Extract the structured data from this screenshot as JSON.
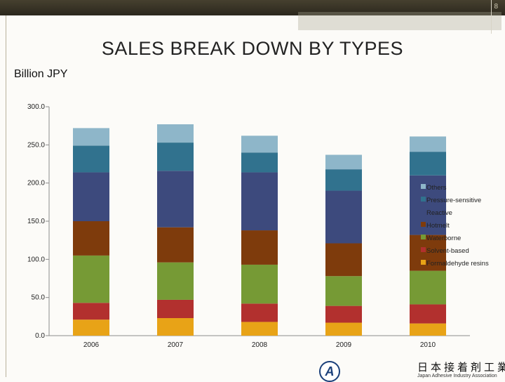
{
  "slide_number": "8",
  "title": "SALES BREAK DOWN BY TYPES",
  "unit_label": "Billion  JPY",
  "footer": {
    "logo_letter": "A",
    "japanese_name": "日本接着剤工業会",
    "english_name": "Japan Adhesive Industry Association"
  },
  "chart_data": {
    "type": "bar",
    "stacked": true,
    "title": "SALES BREAK DOWN BY TYPES",
    "ylabel": "Billion JPY",
    "xlabel": "",
    "ylim": [
      0,
      300
    ],
    "yticks": [
      "0.0",
      "50.0",
      "100.0",
      "150.0",
      "200.0",
      "250.0",
      "300.0"
    ],
    "grid": false,
    "legend_position": "right",
    "categories": [
      "2006",
      "2007",
      "2008",
      "2009",
      "2010"
    ],
    "series": [
      {
        "name": "Formaldehyde resins",
        "color": "#e8a317",
        "values": [
          21,
          23,
          18,
          17,
          16
        ]
      },
      {
        "name": "Solvent-based",
        "color": "#b2302e",
        "values": [
          22,
          24,
          24,
          22,
          25
        ]
      },
      {
        "name": "Waterborne",
        "color": "#769a35",
        "values": [
          62,
          49,
          51,
          39,
          44
        ]
      },
      {
        "name": "Hotmelt",
        "color": "#7e3b0c",
        "values": [
          45,
          46,
          45,
          43,
          47
        ]
      },
      {
        "name": "Reactive",
        "color": "#3d4a7d",
        "values": [
          64,
          74,
          76,
          69,
          78
        ]
      },
      {
        "name": "Pressure-sensitive",
        "color": "#31728e",
        "values": [
          35,
          37,
          26,
          28,
          31
        ]
      },
      {
        "name": "Others",
        "color": "#8eb6c9",
        "values": [
          23,
          24,
          22,
          19,
          20
        ]
      }
    ]
  }
}
